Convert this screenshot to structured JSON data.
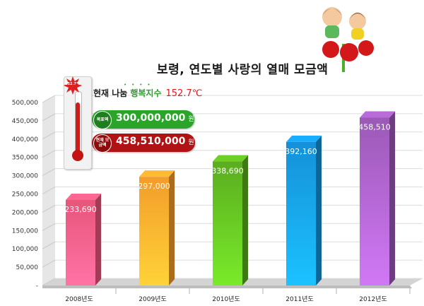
{
  "title": "보령, 연도별 사랑의 열매 모금액",
  "status": {
    "prefix": "현재 나눔",
    "index_label": "행복지수",
    "temperature": "152.7℃",
    "thermometer_badge": "152.7℃"
  },
  "goal": {
    "badge": "목표액",
    "amount": "300,000,000",
    "unit": "원"
  },
  "current": {
    "badge": "현재 모금액",
    "amount": "458,510,000",
    "unit": "원"
  },
  "colors": {
    "bars": [
      "#e8557a",
      "#f39c2a",
      "#5aad1f",
      "#1590d8",
      "#9b59b6"
    ],
    "goal_pill": "#2aa52a",
    "current_pill": "#b01313"
  },
  "chart_data": {
    "type": "bar",
    "title": "보령, 연도별 사랑의 열매 모금액",
    "categories": [
      "2008년도",
      "2009년도",
      "2010년도",
      "2011년도",
      "2012년도"
    ],
    "values": [
      233690,
      297000,
      338690,
      392160,
      458510
    ],
    "data_labels": [
      "233,690",
      "297,000",
      "338,690",
      "392,160",
      "458,510"
    ],
    "ylim": [
      0,
      500000
    ],
    "yticks": [
      "-",
      "50,000",
      "100,000",
      "150,000",
      "200,000",
      "250,000",
      "300,000",
      "350,000",
      "400,000",
      "450,000",
      "500,000"
    ],
    "xlabel": "",
    "ylabel": "",
    "grid": true,
    "style": "3d-bars"
  }
}
